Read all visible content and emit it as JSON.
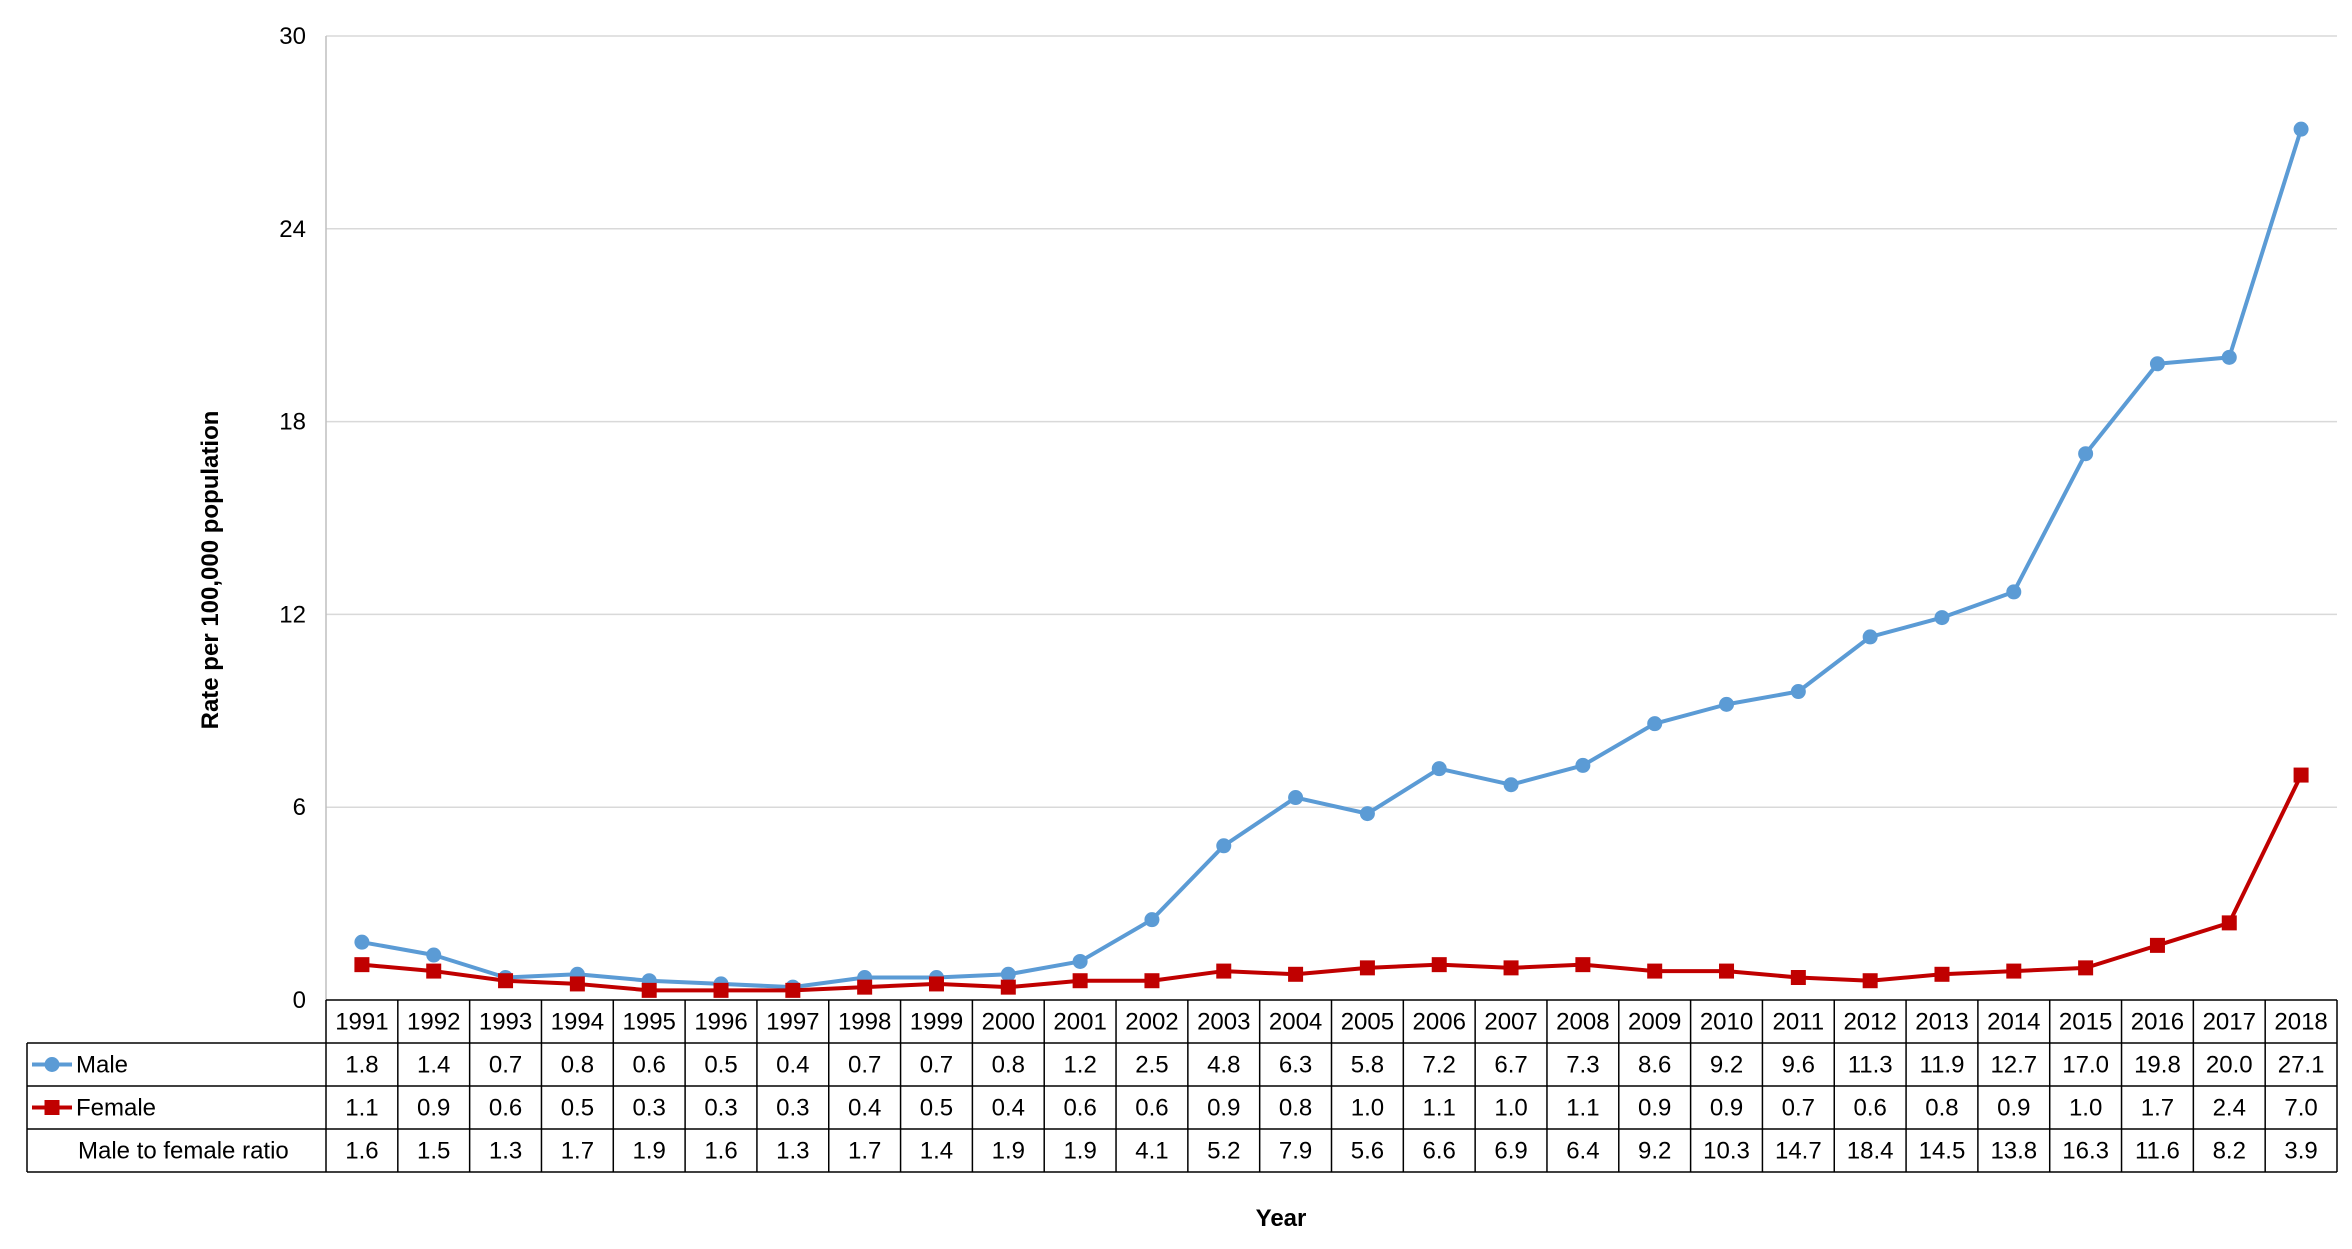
{
  "chart_data": {
    "type": "line",
    "ylabel": "Rate per 100,000 population",
    "xlabel": "Year",
    "ylim": [
      0,
      30
    ],
    "yticks": [
      0,
      6,
      12,
      18,
      24,
      30
    ],
    "grid": true,
    "categories": [
      "1991",
      "1992",
      "1993",
      "1994",
      "1995",
      "1996",
      "1997",
      "1998",
      "1999",
      "2000",
      "2001",
      "2002",
      "2003",
      "2004",
      "2005",
      "2006",
      "2007",
      "2008",
      "2009",
      "2010",
      "2011",
      "2012",
      "2013",
      "2014",
      "2015",
      "2016",
      "2017",
      "2018"
    ],
    "series": [
      {
        "name": "Male",
        "color": "#5b9bd5",
        "marker": "circle",
        "values": [
          1.8,
          1.4,
          0.7,
          0.8,
          0.6,
          0.5,
          0.4,
          0.7,
          0.7,
          0.8,
          1.2,
          2.5,
          4.8,
          6.3,
          5.8,
          7.2,
          6.7,
          7.3,
          8.6,
          9.2,
          9.6,
          11.3,
          11.9,
          12.7,
          17.0,
          19.8,
          20.0,
          27.1
        ]
      },
      {
        "name": "Female",
        "color": "#c00000",
        "marker": "square",
        "values": [
          1.1,
          0.9,
          0.6,
          0.5,
          0.3,
          0.3,
          0.3,
          0.4,
          0.5,
          0.4,
          0.6,
          0.6,
          0.9,
          0.8,
          1.0,
          1.1,
          1.0,
          1.1,
          0.9,
          0.9,
          0.7,
          0.6,
          0.8,
          0.9,
          1.0,
          1.7,
          2.4,
          7.0
        ]
      }
    ],
    "table_rows": [
      {
        "label": "Male",
        "legend_marker": "circle",
        "color": "#5b9bd5",
        "values": [
          "1.8",
          "1.4",
          "0.7",
          "0.8",
          "0.6",
          "0.5",
          "0.4",
          "0.7",
          "0.7",
          "0.8",
          "1.2",
          "2.5",
          "4.8",
          "6.3",
          "5.8",
          "7.2",
          "6.7",
          "7.3",
          "8.6",
          "9.2",
          "9.6",
          "11.3",
          "11.9",
          "12.7",
          "17.0",
          "19.8",
          "20.0",
          "27.1"
        ]
      },
      {
        "label": "Female",
        "legend_marker": "square",
        "color": "#c00000",
        "values": [
          "1.1",
          "0.9",
          "0.6",
          "0.5",
          "0.3",
          "0.3",
          "0.3",
          "0.4",
          "0.5",
          "0.4",
          "0.6",
          "0.6",
          "0.9",
          "0.8",
          "1.0",
          "1.1",
          "1.0",
          "1.1",
          "0.9",
          "0.9",
          "0.7",
          "0.6",
          "0.8",
          "0.9",
          "1.0",
          "1.7",
          "2.4",
          "7.0"
        ]
      },
      {
        "label": "Male to female ratio",
        "legend_marker": "none",
        "color": "",
        "values": [
          "1.6",
          "1.5",
          "1.3",
          "1.7",
          "1.9",
          "1.6",
          "1.3",
          "1.7",
          "1.4",
          "1.9",
          "1.9",
          "4.1",
          "5.2",
          "7.9",
          "5.6",
          "6.6",
          "6.9",
          "6.4",
          "9.2",
          "10.3",
          "14.7",
          "18.4",
          "14.5",
          "13.8",
          "16.3",
          "11.6",
          "8.2",
          "3.9"
        ]
      }
    ]
  }
}
